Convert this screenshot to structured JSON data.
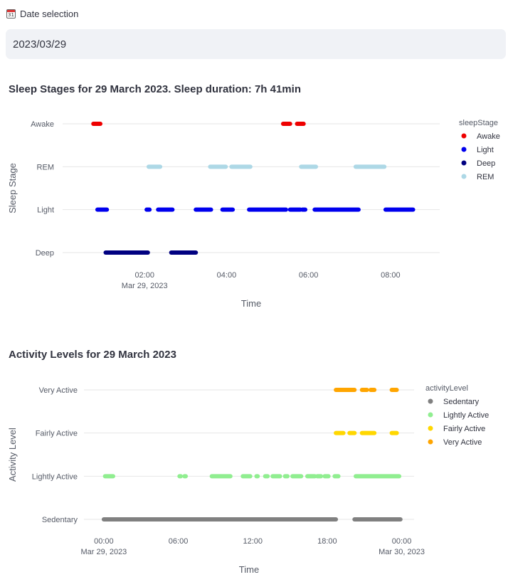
{
  "date_selection": {
    "label": "Date selection",
    "icon": "calendar-icon",
    "icon_text": "31",
    "value": "2023/03/29"
  },
  "sleep_chart": {
    "title": "Sleep Stages for 29 March 2023. Sleep duration: 7h 41min",
    "chart_data": {
      "type": "scatter",
      "title": "Sleep Stages for 29 March 2023. Sleep duration: 7h 41min",
      "xlabel": "Time",
      "ylabel": "Sleep Stage",
      "x_range_hours": [
        0.0,
        9.2
      ],
      "categories": [
        "Deep",
        "Light",
        "REM",
        "Awake"
      ],
      "x_ticks": [
        {
          "value": 2,
          "label": "02:00",
          "sublabel": "Mar 29, 2023"
        },
        {
          "value": 4,
          "label": "04:00",
          "sublabel": ""
        },
        {
          "value": 6,
          "label": "06:00",
          "sublabel": ""
        },
        {
          "value": 8,
          "label": "08:00",
          "sublabel": ""
        }
      ],
      "legend_title": "sleepStage",
      "series": [
        {
          "name": "Awake",
          "color": "#ee0000",
          "segments": [
            [
              0.75,
              0.92
            ],
            [
              5.38,
              5.55
            ],
            [
              5.72,
              5.88
            ]
          ]
        },
        {
          "name": "Light",
          "color": "#0000ee",
          "segments": [
            [
              0.85,
              1.08
            ],
            [
              2.05,
              2.12
            ],
            [
              2.33,
              2.68
            ],
            [
              3.25,
              3.62
            ],
            [
              3.9,
              4.15
            ],
            [
              4.55,
              5.45
            ],
            [
              5.55,
              5.8
            ],
            [
              5.85,
              5.92
            ],
            [
              6.15,
              7.22
            ],
            [
              7.88,
              8.55
            ]
          ]
        },
        {
          "name": "Deep",
          "color": "#000080",
          "segments": [
            [
              1.05,
              2.08
            ],
            [
              2.65,
              3.25
            ]
          ]
        },
        {
          "name": "REM",
          "color": "#add8e6",
          "segments": [
            [
              2.1,
              2.38
            ],
            [
              3.6,
              3.98
            ],
            [
              4.12,
              4.58
            ],
            [
              5.82,
              6.18
            ],
            [
              7.15,
              7.85
            ]
          ]
        }
      ]
    }
  },
  "activity_chart": {
    "title": "Activity Levels for 29 March 2023",
    "chart_data": {
      "type": "scatter",
      "title": "Activity Levels for 29 March 2023",
      "xlabel": "Time",
      "ylabel": "Activity Level",
      "x_range_hours": [
        -1.6,
        25.0
      ],
      "categories": [
        "Sedentary",
        "Lightly Active",
        "Fairly Active",
        "Very Active"
      ],
      "x_ticks": [
        {
          "value": 0,
          "label": "00:00",
          "sublabel": "Mar 29, 2023"
        },
        {
          "value": 6,
          "label": "06:00",
          "sublabel": ""
        },
        {
          "value": 12,
          "label": "12:00",
          "sublabel": ""
        },
        {
          "value": 18,
          "label": "18:00",
          "sublabel": ""
        },
        {
          "value": 24,
          "label": "00:00",
          "sublabel": "Mar 30, 2023"
        }
      ],
      "legend_title": "activityLevel",
      "series": [
        {
          "name": "Sedentary",
          "color": "#808080",
          "segments": [
            [
              0.0,
              18.7
            ],
            [
              20.2,
              23.9
            ]
          ]
        },
        {
          "name": "Lightly Active",
          "color": "#90ee90",
          "segments": [
            [
              0.1,
              0.75
            ],
            [
              6.1,
              6.2
            ],
            [
              6.5,
              6.6
            ],
            [
              8.7,
              10.2
            ],
            [
              11.2,
              11.8
            ],
            [
              12.3,
              12.4
            ],
            [
              13.0,
              13.2
            ],
            [
              13.6,
              14.2
            ],
            [
              14.6,
              14.8
            ],
            [
              15.2,
              15.9
            ],
            [
              16.4,
              17.0
            ],
            [
              17.2,
              17.5
            ],
            [
              17.8,
              18.1
            ],
            [
              18.6,
              18.9
            ],
            [
              20.3,
              23.8
            ]
          ]
        },
        {
          "name": "Fairly Active",
          "color": "#ffd700",
          "segments": [
            [
              18.7,
              19.3
            ],
            [
              19.8,
              20.2
            ],
            [
              20.8,
              21.8
            ],
            [
              23.2,
              23.6
            ]
          ]
        },
        {
          "name": "Very Active",
          "color": "#ffa500",
          "segments": [
            [
              18.7,
              20.2
            ],
            [
              20.8,
              21.2
            ],
            [
              21.5,
              21.8
            ],
            [
              23.2,
              23.6
            ]
          ]
        }
      ]
    }
  }
}
